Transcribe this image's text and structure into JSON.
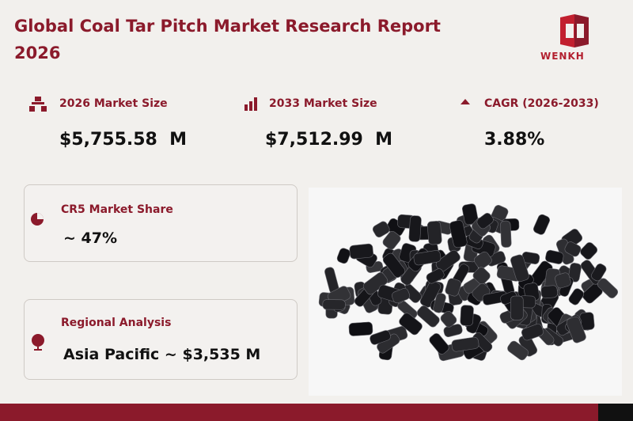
{
  "header": {
    "title": "Global Coal Tar Pitch Market Research Report 2026",
    "logo": "WENKH"
  },
  "stats": [
    {
      "label": "2026 Market Size",
      "value": "$5,755.58  M"
    },
    {
      "label": "2033 Market Size",
      "value": "$7,512.99  M"
    },
    {
      "label": "CAGR (2026-2033)",
      "value": "3.88%"
    }
  ],
  "cards": [
    {
      "label": "CR5 Market Share",
      "value": "~ 47%"
    },
    {
      "label": "Regional Analysis",
      "value": "Asia Pacific ~ $3,535 M"
    }
  ]
}
